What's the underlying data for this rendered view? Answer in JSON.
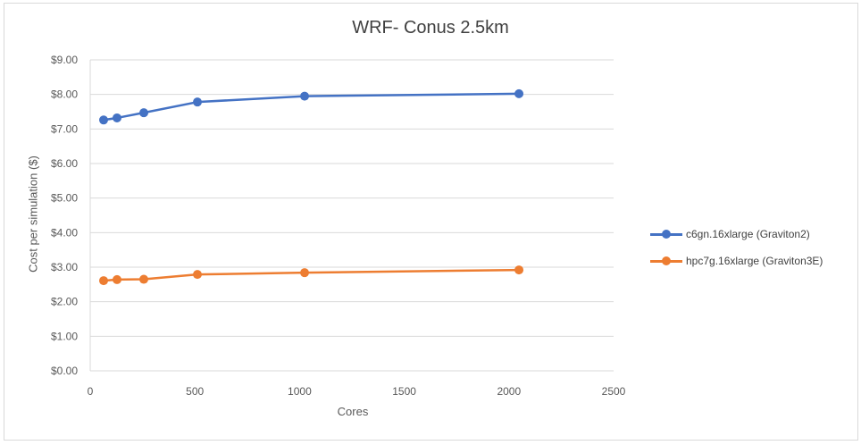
{
  "chart_data": {
    "type": "line",
    "title": "WRF- Conus 2.5km",
    "xlabel": "Cores",
    "ylabel": "Cost per simulation ($)",
    "xlim": [
      0,
      2500
    ],
    "ylim": [
      0,
      9
    ],
    "x_ticks": [
      "0",
      "500",
      "1000",
      "1500",
      "2000",
      "2500"
    ],
    "y_ticks": [
      "$0.00",
      "$1.00",
      "$2.00",
      "$3.00",
      "$4.00",
      "$5.00",
      "$6.00",
      "$7.00",
      "$8.00",
      "$9.00"
    ],
    "grid": "horizontal",
    "legend_position": "right",
    "x": [
      64,
      128,
      256,
      512,
      1024,
      2048
    ],
    "series": [
      {
        "name": "c6gn.16xlarge (Graviton2)",
        "color": "#4472C4",
        "values": [
          7.26,
          7.32,
          7.47,
          7.78,
          7.95,
          8.02
        ]
      },
      {
        "name": "hpc7g.16xlarge (Graviton3E)",
        "color": "#ED7D31",
        "values": [
          2.61,
          2.64,
          2.65,
          2.79,
          2.84,
          2.92
        ]
      }
    ]
  }
}
